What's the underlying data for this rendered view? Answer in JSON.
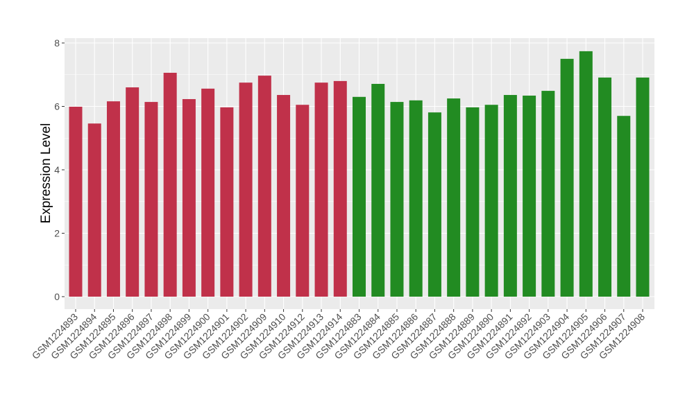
{
  "chart_data": {
    "type": "bar",
    "title": "",
    "xlabel": "",
    "ylabel": "Expression Level",
    "ylim": [
      0,
      8
    ],
    "yticks": [
      0,
      2,
      4,
      6,
      8
    ],
    "grid": true,
    "categories": [
      "GSM1224893",
      "GSM1224894",
      "GSM1224895",
      "GSM1224896",
      "GSM1224897",
      "GSM1224898",
      "GSM1224899",
      "GSM1224900",
      "GSM1224901",
      "GSM1224902",
      "GSM1224909",
      "GSM1224910",
      "GSM1224912",
      "GSM1224913",
      "GSM1224914",
      "GSM1224883",
      "GSM1224884",
      "GSM1224885",
      "GSM1224886",
      "GSM1224887",
      "GSM1224888",
      "GSM1224889",
      "GSM1224890",
      "GSM1224891",
      "GSM1224892",
      "GSM1224903",
      "GSM1224904",
      "GSM1224905",
      "GSM1224906",
      "GSM1224907",
      "GSM1224908"
    ],
    "values": [
      5.99,
      5.46,
      6.16,
      6.6,
      6.14,
      7.06,
      6.23,
      6.56,
      5.97,
      6.75,
      6.97,
      6.36,
      6.05,
      6.75,
      6.8,
      6.3,
      6.71,
      6.14,
      6.19,
      5.81,
      6.25,
      5.97,
      6.05,
      6.36,
      6.34,
      6.49,
      7.5,
      7.74,
      6.91,
      5.7,
      6.91
    ],
    "groups": [
      "red",
      "red",
      "red",
      "red",
      "red",
      "red",
      "red",
      "red",
      "red",
      "red",
      "red",
      "red",
      "red",
      "red",
      "red",
      "green",
      "green",
      "green",
      "green",
      "green",
      "green",
      "green",
      "green",
      "green",
      "green",
      "green",
      "green",
      "green",
      "green",
      "green",
      "green"
    ],
    "colors": {
      "red": "#c0314a",
      "green": "#228b22",
      "panel": "#ebebeb",
      "grid": "#ffffff"
    }
  }
}
